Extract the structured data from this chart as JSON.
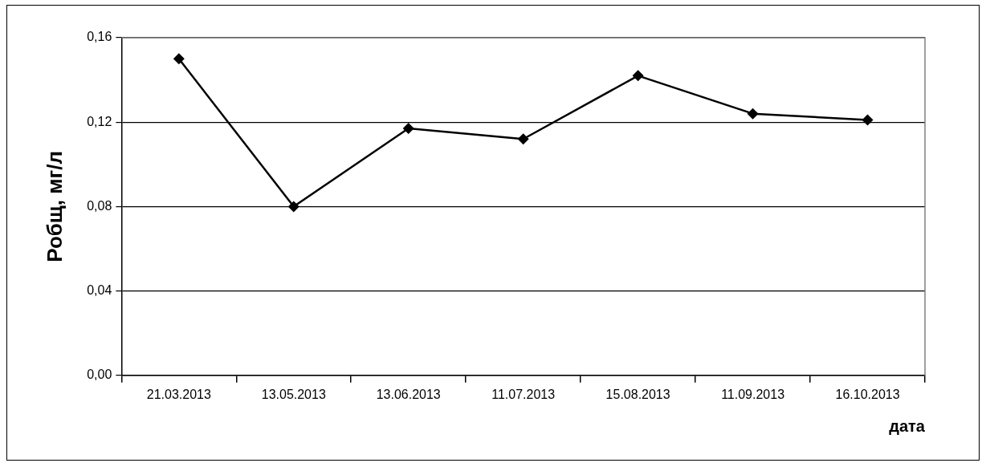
{
  "chart_data": {
    "type": "line",
    "xlabel": "дата",
    "ylabel": "Робщ, мг/л",
    "categories": [
      "21.03.2013",
      "13.05.2013",
      "13.06.2013",
      "11.07.2013",
      "15.08.2013",
      "11.09.2013",
      "16.10.2013"
    ],
    "series": [
      {
        "color": "#000000",
        "values": [
          0.15,
          0.08,
          0.117,
          0.112,
          0.142,
          0.124,
          0.121
        ]
      }
    ],
    "ylim": [
      0,
      0.16
    ],
    "yticks": [
      {
        "value": 0,
        "label": "0,00"
      },
      {
        "value": 0.04,
        "label": "0,04"
      },
      {
        "value": 0.08,
        "label": "0,08"
      },
      {
        "value": 0.12,
        "label": "0,12"
      },
      {
        "value": 0.16,
        "label": "0,16"
      }
    ],
    "grid": "y",
    "legend": false,
    "marker": "diamond",
    "line_style": "solid"
  }
}
